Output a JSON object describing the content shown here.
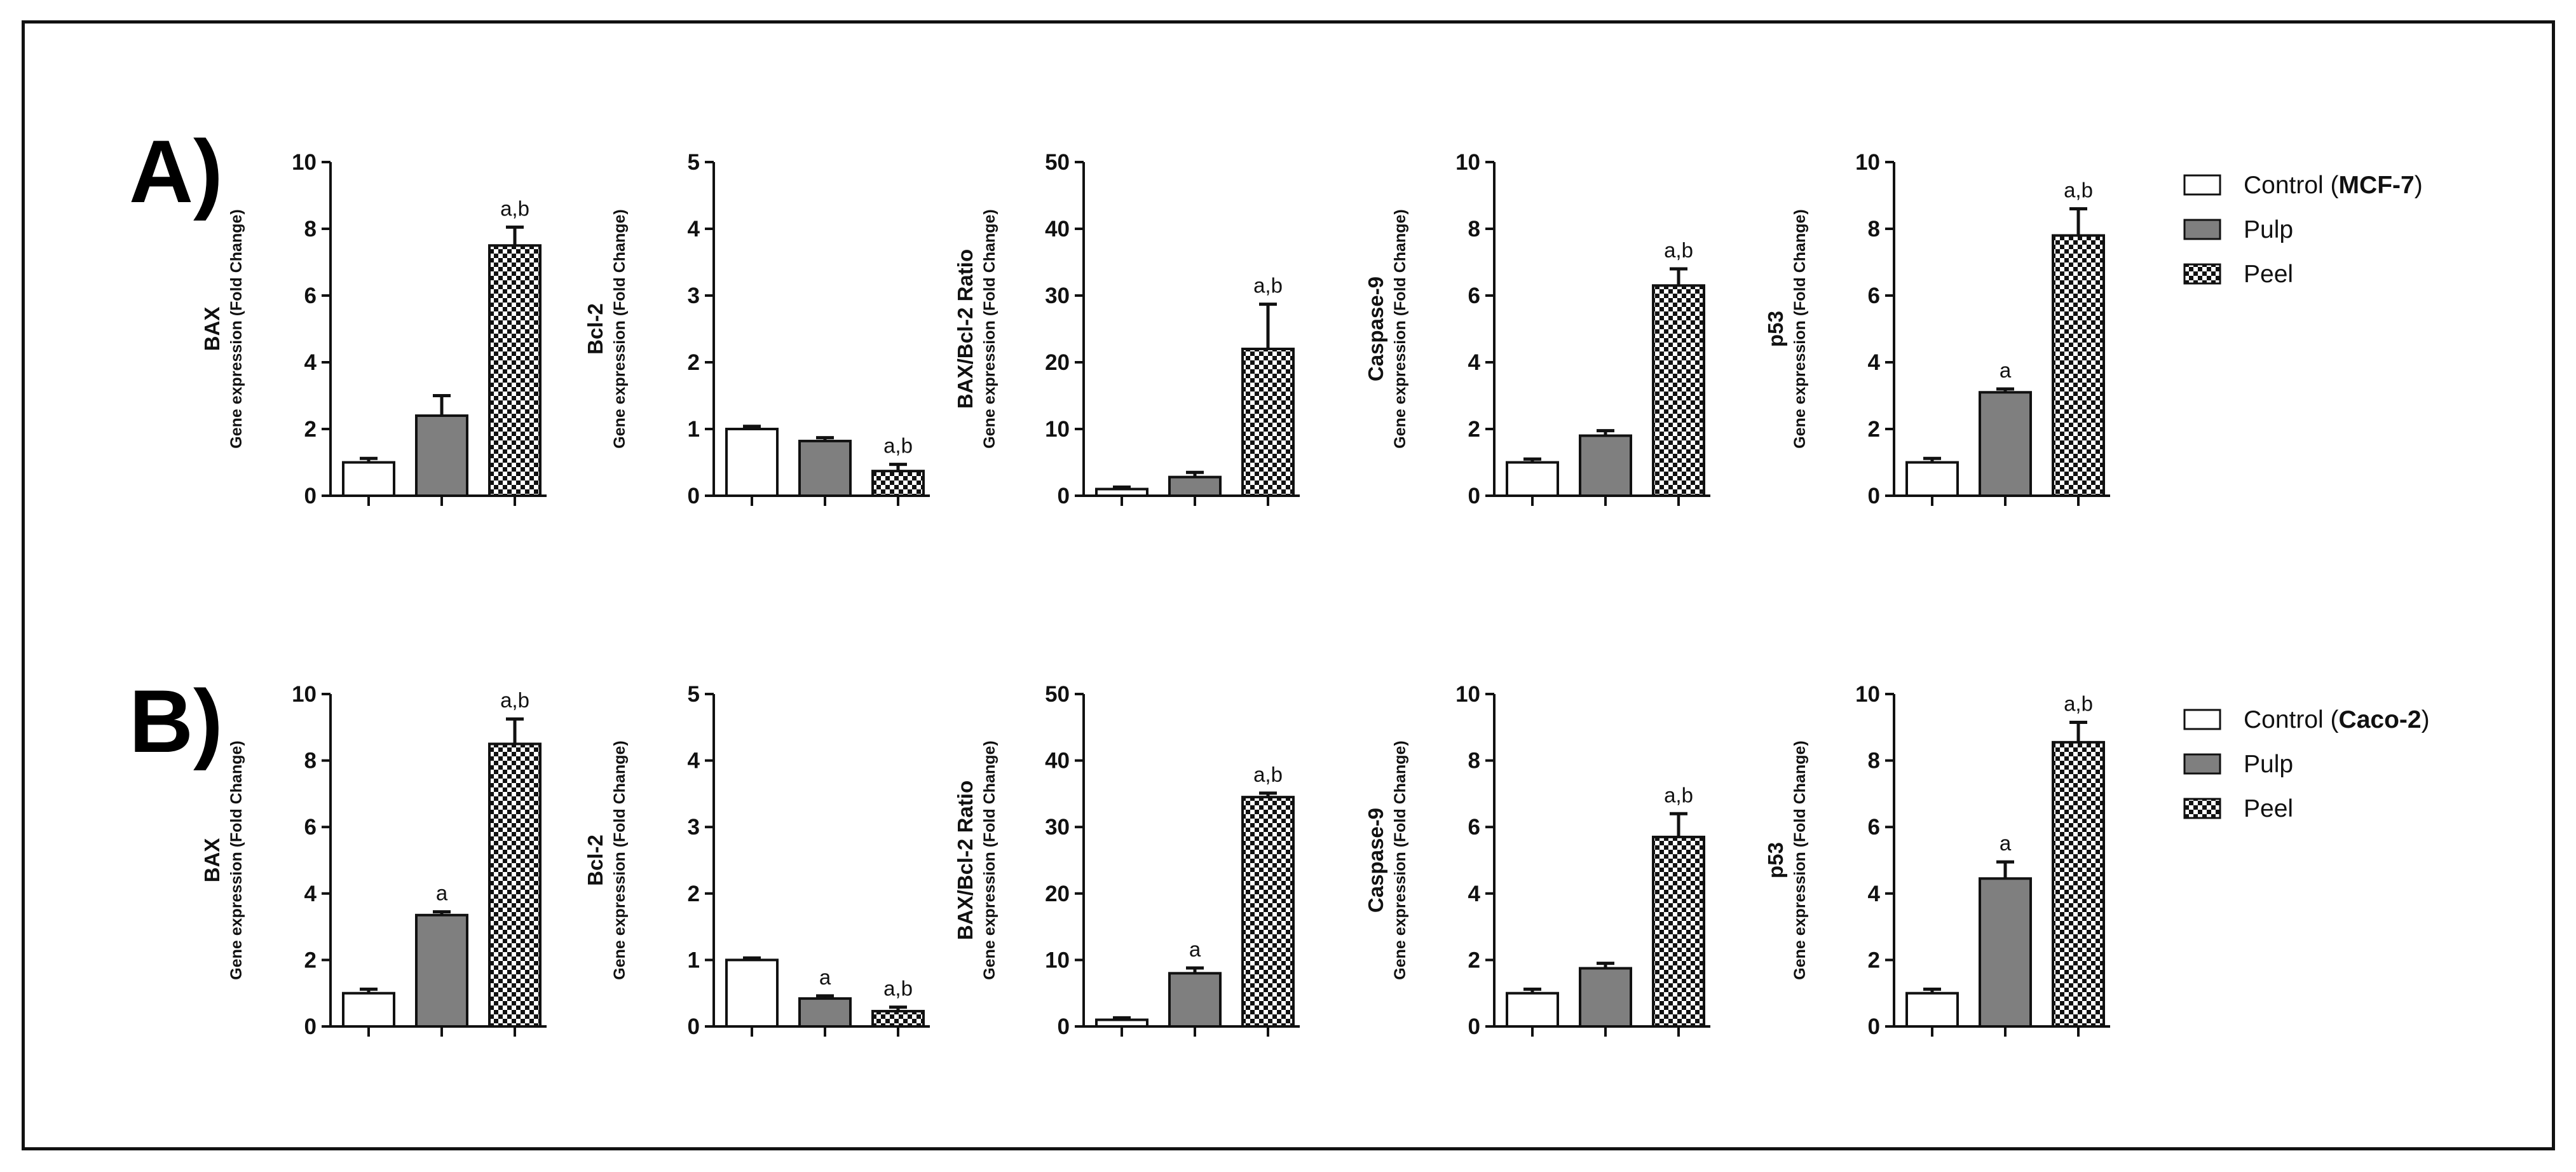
{
  "panels": [
    {
      "label": "A)",
      "legend": [
        {
          "text": "Control (",
          "bold": "MCF-7",
          "suffix": ")",
          "fill": "white"
        },
        {
          "text": "Pulp",
          "bold": "",
          "suffix": "",
          "fill": "gray"
        },
        {
          "text": "Peel",
          "bold": "",
          "suffix": "",
          "fill": "check"
        }
      ]
    },
    {
      "label": "B)",
      "legend": [
        {
          "text": "Control (",
          "bold": "Caco-2",
          "suffix": ")",
          "fill": "white"
        },
        {
          "text": "Pulp",
          "bold": "",
          "suffix": "",
          "fill": "gray"
        },
        {
          "text": "Peel",
          "bold": "",
          "suffix": "",
          "fill": "check"
        }
      ]
    }
  ],
  "chart_data": [
    {
      "type": "bar",
      "panel": "A)",
      "gene": "BAX",
      "ylabel": "Gene expression  (Fold Change)",
      "ylim": [
        0,
        10
      ],
      "yticks": [
        0,
        2,
        4,
        6,
        8,
        10
      ],
      "categories": [
        "Control",
        "Pulp",
        "Peel"
      ],
      "values": [
        1.0,
        2.4,
        7.5
      ],
      "errors": [
        0.12,
        0.6,
        0.55
      ],
      "annotations": [
        "",
        "",
        "a,b"
      ]
    },
    {
      "type": "bar",
      "panel": "A)",
      "gene": "Bcl-2",
      "ylabel": "Gene expression  (Fold Change)",
      "ylim": [
        0,
        5
      ],
      "yticks": [
        0,
        1,
        2,
        3,
        4,
        5
      ],
      "categories": [
        "Control",
        "Pulp",
        "Peel"
      ],
      "values": [
        1.0,
        0.82,
        0.37
      ],
      "errors": [
        0.04,
        0.05,
        0.1
      ],
      "annotations": [
        "",
        "",
        "a,b"
      ]
    },
    {
      "type": "bar",
      "panel": "A)",
      "gene": "BAX/Bcl-2 Ratio",
      "ylabel": "Gene expression  (Fold Change)",
      "ylim": [
        0,
        50
      ],
      "yticks": [
        0,
        10,
        20,
        30,
        40,
        50
      ],
      "categories": [
        "Control",
        "Pulp",
        "Peel"
      ],
      "values": [
        1.0,
        2.8,
        22.0
      ],
      "errors": [
        0.3,
        0.7,
        6.7
      ],
      "annotations": [
        "",
        "",
        "a,b"
      ]
    },
    {
      "type": "bar",
      "panel": "A)",
      "gene": "Caspase-9",
      "ylabel": "Gene expression  (Fold Change)",
      "ylim": [
        0,
        10
      ],
      "yticks": [
        0,
        2,
        4,
        6,
        8,
        10
      ],
      "categories": [
        "Control",
        "Pulp",
        "Peel"
      ],
      "values": [
        1.0,
        1.8,
        6.3
      ],
      "errors": [
        0.1,
        0.15,
        0.5
      ],
      "annotations": [
        "",
        "",
        "a,b"
      ]
    },
    {
      "type": "bar",
      "panel": "A)",
      "gene": "p53",
      "ylabel": "Gene expression  (Fold Change)",
      "ylim": [
        0,
        10
      ],
      "yticks": [
        0,
        2,
        4,
        6,
        8,
        10
      ],
      "categories": [
        "Control",
        "Pulp",
        "Peel"
      ],
      "values": [
        1.0,
        3.1,
        7.8
      ],
      "errors": [
        0.12,
        0.1,
        0.8
      ],
      "annotations": [
        "",
        "a",
        "a,b"
      ]
    },
    {
      "type": "bar",
      "panel": "B)",
      "gene": "BAX",
      "ylabel": "Gene expression  (Fold Change)",
      "ylim": [
        0,
        10
      ],
      "yticks": [
        0,
        2,
        4,
        6,
        8,
        10
      ],
      "categories": [
        "Control",
        "Pulp",
        "Peel"
      ],
      "values": [
        1.0,
        3.35,
        8.5
      ],
      "errors": [
        0.12,
        0.1,
        0.75
      ],
      "annotations": [
        "",
        "a",
        "a,b"
      ]
    },
    {
      "type": "bar",
      "panel": "B)",
      "gene": "Bcl-2",
      "ylabel": "Gene expression  (Fold Change)",
      "ylim": [
        0,
        5
      ],
      "yticks": [
        0,
        1,
        2,
        3,
        4,
        5
      ],
      "categories": [
        "Control",
        "Pulp",
        "Peel"
      ],
      "values": [
        1.0,
        0.42,
        0.23
      ],
      "errors": [
        0.03,
        0.04,
        0.06
      ],
      "annotations": [
        "",
        "a",
        "a,b"
      ]
    },
    {
      "type": "bar",
      "panel": "B)",
      "gene": "BAX/Bcl-2 Ratio",
      "ylabel": "Gene expression  (Fold Change)",
      "ylim": [
        0,
        50
      ],
      "yticks": [
        0,
        10,
        20,
        30,
        40,
        50
      ],
      "categories": [
        "Control",
        "Pulp",
        "Peel"
      ],
      "values": [
        1.0,
        8.0,
        34.5
      ],
      "errors": [
        0.3,
        0.8,
        0.6
      ],
      "annotations": [
        "",
        "a",
        "a,b"
      ]
    },
    {
      "type": "bar",
      "panel": "B)",
      "gene": "Caspase-9",
      "ylabel": "Gene expression  (Fold Change)",
      "ylim": [
        0,
        10
      ],
      "yticks": [
        0,
        2,
        4,
        6,
        8,
        10
      ],
      "categories": [
        "Control",
        "Pulp",
        "Peel"
      ],
      "values": [
        1.0,
        1.75,
        5.7
      ],
      "errors": [
        0.12,
        0.15,
        0.7
      ],
      "annotations": [
        "",
        "",
        "a,b"
      ]
    },
    {
      "type": "bar",
      "panel": "B)",
      "gene": "p53",
      "ylabel": "Gene expression  (Fold Change)",
      "ylim": [
        0,
        10
      ],
      "yticks": [
        0,
        2,
        4,
        6,
        8,
        10
      ],
      "categories": [
        "Control",
        "Pulp",
        "Peel"
      ],
      "values": [
        1.0,
        4.45,
        8.55
      ],
      "errors": [
        0.12,
        0.5,
        0.6
      ],
      "annotations": [
        "",
        "a",
        "a,b"
      ]
    }
  ],
  "colors": {
    "pulp": "#7f7f7f",
    "axis": "#111111",
    "checker_dark": "#111111",
    "checker_light": "#ffffff"
  }
}
